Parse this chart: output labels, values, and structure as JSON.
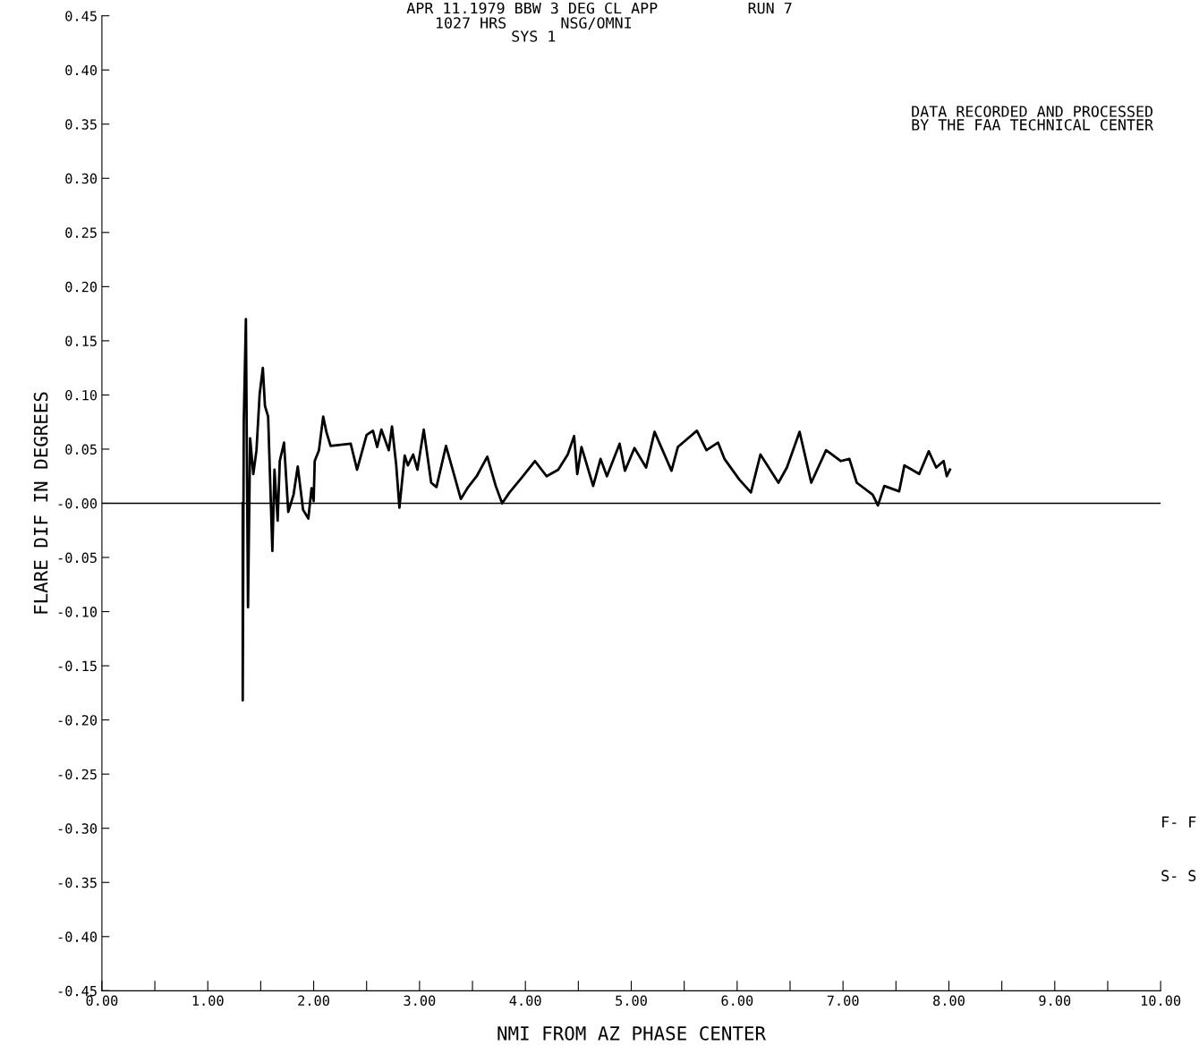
{
  "chart_data": {
    "type": "line",
    "title": "APR 11.1979 BBW 3 DEG CL APP          RUN 7",
    "subtitle": "1027 HRS      NSG/OMNI\nSYS 1",
    "xlabel": "NMI FROM AZ PHASE CENTER",
    "ylabel": "FLARE DIF IN DEGREES",
    "annotations": [
      "DATA RECORDED AND PROCESSED\nBY THE FAA TECHNICAL CENTER",
      "F- F",
      "S- S"
    ],
    "x": [
      1.33,
      1.33,
      1.34,
      1.36,
      1.38,
      1.4,
      1.43,
      1.46,
      1.49,
      1.52,
      1.54,
      1.57,
      1.61,
      1.63,
      1.66,
      1.68,
      1.72,
      1.76,
      1.81,
      1.85,
      1.9,
      1.95,
      1.98,
      2.0,
      2.01,
      2.05,
      2.09,
      2.12,
      2.16,
      2.35,
      2.41,
      2.5,
      2.56,
      2.6,
      2.64,
      2.71,
      2.74,
      2.78,
      2.81,
      2.86,
      2.89,
      2.94,
      2.98,
      3.04,
      3.11,
      3.16,
      3.25,
      3.33,
      3.39,
      3.46,
      3.54,
      3.64,
      3.72,
      3.78,
      3.85,
      3.96,
      4.09,
      4.2,
      4.31,
      4.4,
      4.46,
      4.49,
      4.53,
      4.64,
      4.71,
      4.77,
      4.89,
      4.94,
      5.03,
      5.14,
      5.22,
      5.38,
      5.44,
      5.62,
      5.71,
      5.82,
      5.88,
      6.02,
      6.13,
      6.22,
      6.39,
      6.47,
      6.59,
      6.7,
      6.84,
      6.98,
      7.06,
      7.13,
      7.28,
      7.33,
      7.39,
      7.53,
      7.58,
      7.72,
      7.81,
      7.88,
      7.95,
      7.98,
      8.01
    ],
    "values": [
      0.0,
      -0.182,
      0.076,
      0.17,
      -0.096,
      0.06,
      0.027,
      0.049,
      0.101,
      0.125,
      0.09,
      0.08,
      -0.044,
      0.031,
      -0.016,
      0.039,
      0.056,
      -0.008,
      0.008,
      0.034,
      -0.006,
      -0.014,
      0.014,
      0.002,
      0.039,
      0.049,
      0.08,
      0.066,
      0.053,
      0.055,
      0.031,
      0.063,
      0.067,
      0.052,
      0.068,
      0.049,
      0.071,
      0.035,
      -0.004,
      0.044,
      0.035,
      0.045,
      0.031,
      0.068,
      0.019,
      0.015,
      0.053,
      0.025,
      0.004,
      0.015,
      0.025,
      0.043,
      0.016,
      0.0,
      0.01,
      0.023,
      0.039,
      0.025,
      0.031,
      0.045,
      0.062,
      0.027,
      0.052,
      0.016,
      0.041,
      0.025,
      0.055,
      0.03,
      0.051,
      0.033,
      0.066,
      0.03,
      0.052,
      0.067,
      0.049,
      0.056,
      0.041,
      0.022,
      0.01,
      0.045,
      0.019,
      0.033,
      0.066,
      0.019,
      0.049,
      0.039,
      0.041,
      0.019,
      0.008,
      -0.002,
      0.016,
      0.011,
      0.035,
      0.027,
      0.048,
      0.033,
      0.039,
      0.025,
      0.031
    ],
    "color": "#000000",
    "xlim": [
      0,
      10
    ],
    "ylim": [
      -0.45,
      0.45
    ],
    "xticks": [
      {
        "value": 0,
        "label": "0.00"
      },
      {
        "value": 0.5,
        "label": null
      },
      {
        "value": 1,
        "label": "1.00"
      },
      {
        "value": 1.5,
        "label": null
      },
      {
        "value": 2,
        "label": "2.00"
      },
      {
        "value": 2.5,
        "label": null
      },
      {
        "value": 3,
        "label": "3.00"
      },
      {
        "value": 3.5,
        "label": null
      },
      {
        "value": 4,
        "label": "4.00"
      },
      {
        "value": 4.5,
        "label": null
      },
      {
        "value": 5,
        "label": "5.00"
      },
      {
        "value": 5.5,
        "label": null
      },
      {
        "value": 6,
        "label": "6.00"
      },
      {
        "value": 6.5,
        "label": null
      },
      {
        "value": 7,
        "label": "7.00"
      },
      {
        "value": 7.5,
        "label": null
      },
      {
        "value": 8,
        "label": "8.00"
      },
      {
        "value": 8.5,
        "label": null
      },
      {
        "value": 9,
        "label": "9.00"
      },
      {
        "value": 9.5,
        "label": null
      },
      {
        "value": 10,
        "label": "10.00"
      }
    ],
    "yticks": [
      {
        "value": -0.45,
        "label": "-0.45"
      },
      {
        "value": -0.4,
        "label": "-0.40"
      },
      {
        "value": -0.35,
        "label": "-0.35"
      },
      {
        "value": -0.3,
        "label": "-0.30"
      },
      {
        "value": -0.25,
        "label": "-0.25"
      },
      {
        "value": -0.2,
        "label": "-0.20"
      },
      {
        "value": -0.15,
        "label": "-0.15"
      },
      {
        "value": -0.1,
        "label": "-0.10"
      },
      {
        "value": -0.05,
        "label": "-0.05"
      },
      {
        "value": 0,
        "label": "-0.00"
      },
      {
        "value": 0.05,
        "label": "0.05"
      },
      {
        "value": 0.1,
        "label": "0.10"
      },
      {
        "value": 0.15,
        "label": "0.15"
      },
      {
        "value": 0.2,
        "label": "0.20"
      },
      {
        "value": 0.25,
        "label": "0.25"
      },
      {
        "value": 0.3,
        "label": "0.30"
      },
      {
        "value": 0.35,
        "label": "0.35"
      },
      {
        "value": 0.4,
        "label": "0.40"
      },
      {
        "value": 0.45,
        "label": "0.45"
      }
    ],
    "ref_lines": [
      {
        "axis": "y",
        "value": 0,
        "color": "#000000"
      }
    ],
    "grid": false,
    "marker": "none",
    "line_style": "solid"
  }
}
